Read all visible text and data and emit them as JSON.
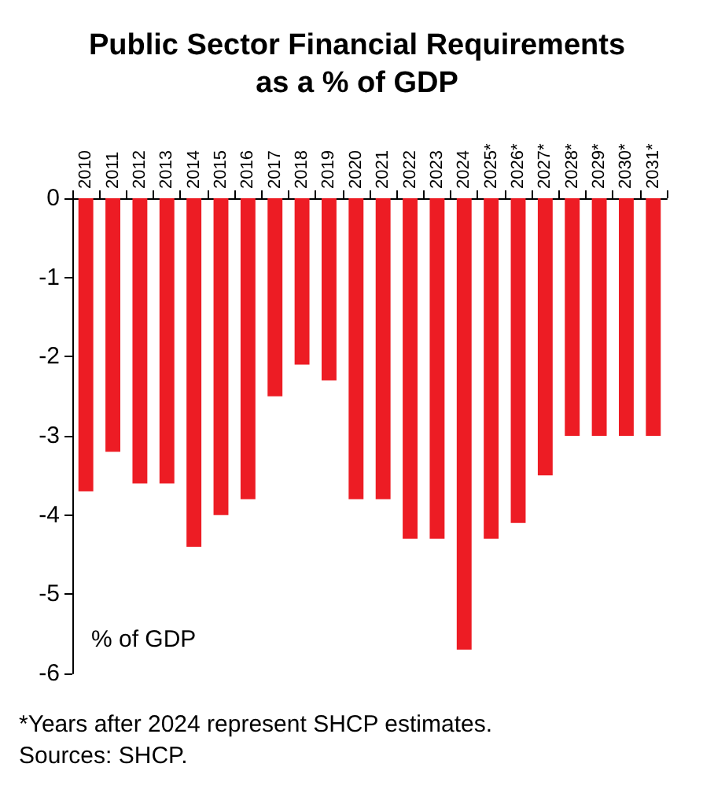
{
  "chart_data": {
    "type": "bar",
    "title": "Public Sector Financial Requirements\nas a % of GDP",
    "categories": [
      "2010",
      "2011",
      "2012",
      "2013",
      "2014",
      "2015",
      "2016",
      "2017",
      "2018",
      "2019",
      "2020",
      "2021",
      "2022",
      "2023",
      "2024",
      "2025*",
      "2026*",
      "2027*",
      "2028*",
      "2029*",
      "2030*",
      "2031*"
    ],
    "values": [
      -3.7,
      -3.2,
      -3.6,
      -3.6,
      -4.4,
      -4.0,
      -3.8,
      -2.5,
      -2.1,
      -2.3,
      -3.8,
      -3.8,
      -4.3,
      -4.3,
      -5.7,
      -4.3,
      -4.1,
      -3.5,
      -3.0,
      -3.0,
      -3.0,
      -3.0
    ],
    "color": "#ed1c24",
    "ylabel": "% of GDP",
    "ylim": [
      -6,
      0
    ],
    "yticks": [
      -6,
      -5,
      -4,
      -3,
      -2,
      -1,
      0
    ],
    "grid": false,
    "annotations": [
      "*Years after 2024 represent SHCP estimates.",
      "Sources: SHCP."
    ]
  }
}
